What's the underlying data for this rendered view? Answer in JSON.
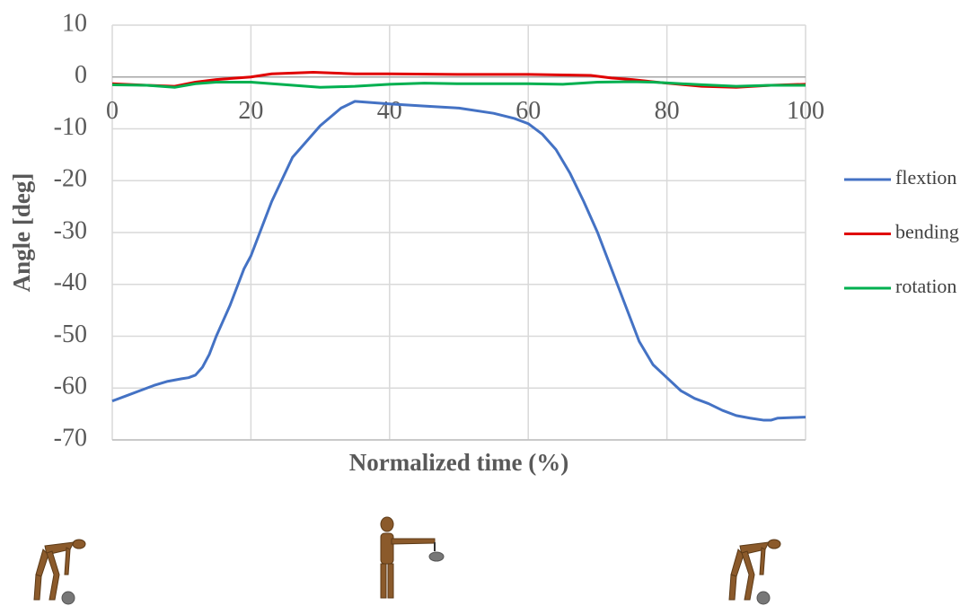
{
  "chart_data": {
    "type": "line",
    "xlabel": "Normalized time (%)",
    "ylabel": "Angle [deg]",
    "xlim": [
      0,
      100
    ],
    "xticks": [
      0,
      20,
      40,
      60,
      80,
      100
    ],
    "ylim": [
      -70,
      10
    ],
    "yticks": [
      -70,
      -60,
      -50,
      -40,
      -30,
      -20,
      -10,
      0,
      10
    ],
    "grid": true,
    "series": [
      {
        "name": "flextion",
        "color": "#4472c4",
        "x": [
          0,
          2,
          4,
          6,
          8,
          10,
          11,
          12,
          13,
          14,
          15,
          16,
          17,
          18,
          19,
          20,
          23,
          26,
          30,
          33,
          35,
          40,
          45,
          50,
          55,
          58,
          60,
          62,
          64,
          66,
          68,
          70,
          72,
          74,
          76,
          78,
          80,
          82,
          84,
          86,
          88,
          90,
          92,
          94,
          95,
          96,
          98,
          100
        ],
        "values": [
          -62.5,
          -61.5,
          -60.5,
          -59.5,
          -58.7,
          -58.2,
          -58,
          -57.5,
          -56,
          -53.5,
          -50,
          -47,
          -44,
          -40.5,
          -37,
          -34.5,
          -24,
          -15.5,
          -9.4,
          -6,
          -4.7,
          -5.2,
          -5.6,
          -6,
          -7,
          -8,
          -9,
          -11,
          -14,
          -18.5,
          -24,
          -30,
          -37,
          -44,
          -51,
          -55.5,
          -58,
          -60.5,
          -62,
          -63,
          -64.3,
          -65.3,
          -65.8,
          -66.2,
          -66.2,
          -65.8,
          -65.7,
          -65.6
        ]
      },
      {
        "name": "bending",
        "color": "#e00000",
        "x": [
          0,
          5,
          9,
          12,
          15,
          20,
          23,
          29,
          35,
          40,
          50,
          60,
          65,
          69,
          72,
          75,
          80,
          85,
          90,
          95,
          100
        ],
        "values": [
          -1.3,
          -1.6,
          -1.8,
          -1,
          -0.5,
          0,
          0.6,
          0.9,
          0.6,
          0.6,
          0.5,
          0.5,
          0.4,
          0.3,
          -0.2,
          -0.5,
          -1.2,
          -1.8,
          -2,
          -1.6,
          -1.4
        ]
      },
      {
        "name": "rotation",
        "color": "#00b050",
        "x": [
          0,
          5,
          9,
          12,
          15,
          20,
          25,
          30,
          35,
          40,
          45,
          50,
          60,
          65,
          70,
          75,
          78,
          85,
          90,
          95,
          100
        ],
        "values": [
          -1.5,
          -1.6,
          -2,
          -1.3,
          -1,
          -1,
          -1.5,
          -2,
          -1.8,
          -1.4,
          -1.2,
          -1.3,
          -1.3,
          -1.4,
          -1,
          -0.9,
          -1,
          -1.5,
          -1.8,
          -1.6,
          -1.6
        ]
      }
    ]
  }
}
